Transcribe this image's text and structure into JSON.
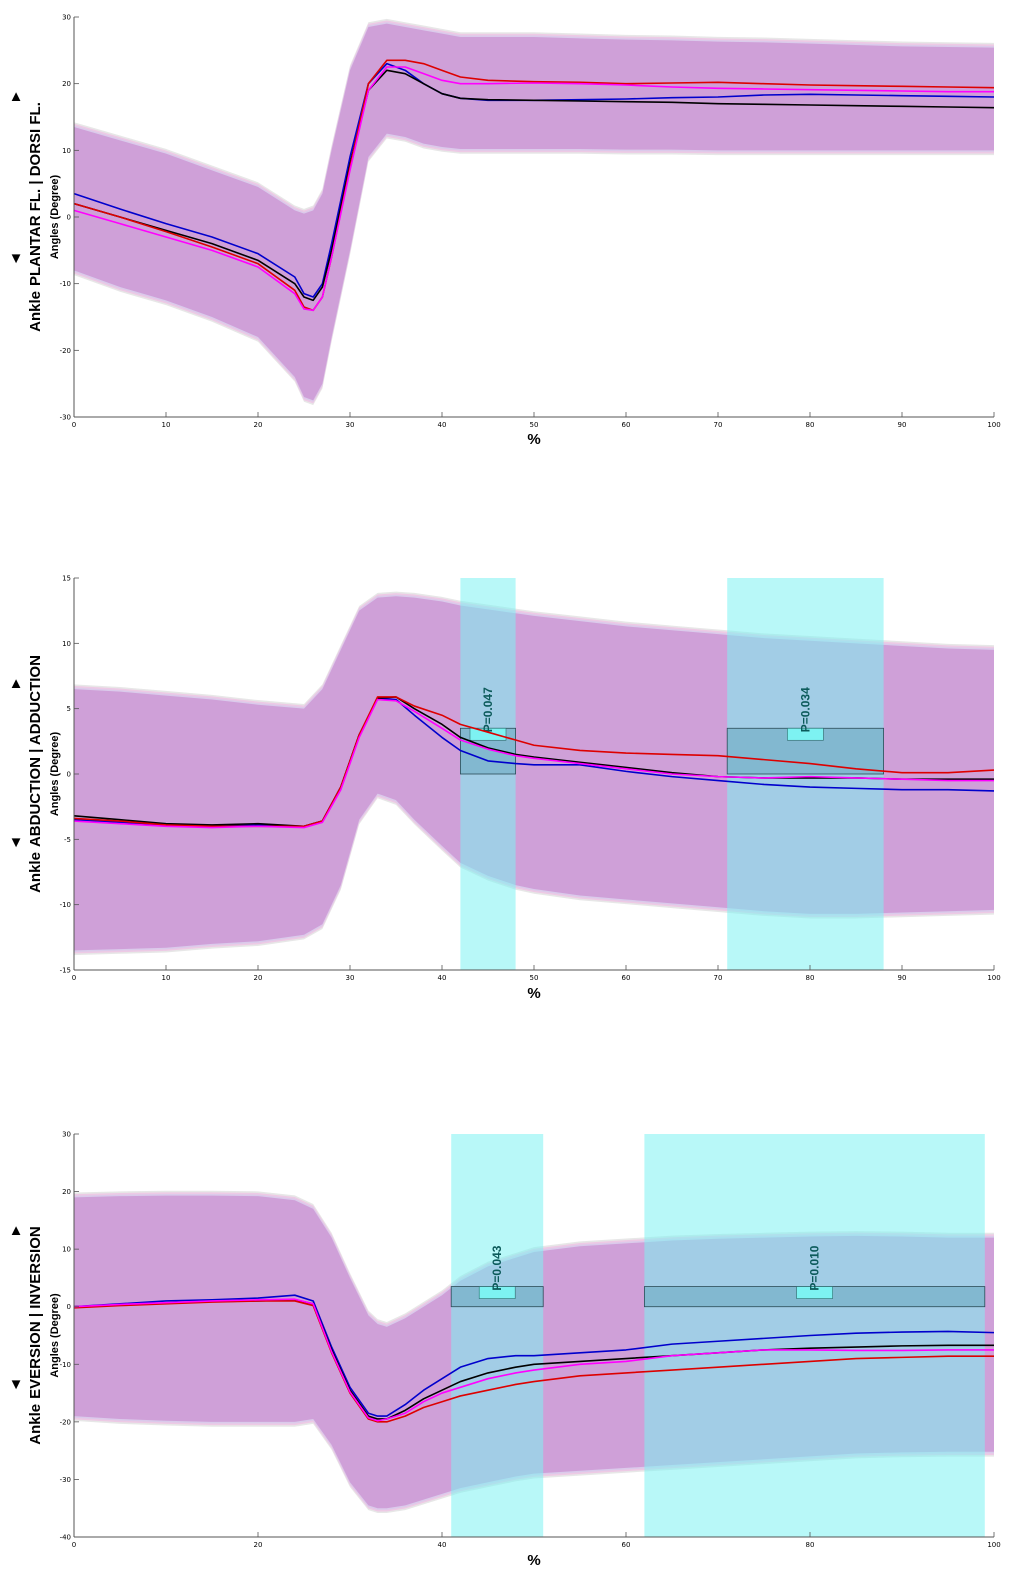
{
  "chart_data": [
    {
      "type": "line",
      "side_label": {
        "joint": "Ankle",
        "direction": "PLANTAR FL. | DORSI FL.",
        "unit": "Angles (Degree)"
      },
      "xlabel": "%",
      "xlim": [
        0,
        100
      ],
      "ylim": [
        -30,
        30
      ],
      "xticks": [
        0,
        10,
        20,
        30,
        40,
        50,
        60,
        70,
        80,
        90,
        100
      ],
      "yticks": [
        -30,
        -20,
        -10,
        0,
        10,
        20,
        30
      ],
      "x": [
        0,
        5,
        10,
        15,
        20,
        24,
        25,
        26,
        27,
        28,
        30,
        32,
        34,
        36,
        38,
        40,
        42,
        45,
        50,
        55,
        60,
        65,
        70,
        75,
        80,
        85,
        90,
        95,
        100
      ],
      "series": [
        {
          "color": "#0000cc",
          "values": [
            3.5,
            1.2,
            -1.0,
            -3.0,
            -5.5,
            -9.0,
            -11.5,
            -12.0,
            -10.0,
            -4.0,
            9.0,
            20.0,
            23.0,
            22.0,
            20.0,
            18.5,
            17.8,
            17.5,
            17.5,
            17.6,
            17.7,
            17.9,
            18.0,
            18.3,
            18.4,
            18.3,
            18.2,
            18.1,
            18.0
          ]
        },
        {
          "color": "#000000",
          "values": [
            2.0,
            0.0,
            -2.0,
            -4.0,
            -6.5,
            -10.0,
            -12.0,
            -12.5,
            -10.5,
            -5.0,
            8.0,
            19.0,
            22.0,
            21.5,
            20.0,
            18.5,
            17.8,
            17.6,
            17.5,
            17.4,
            17.3,
            17.2,
            17.0,
            16.9,
            16.8,
            16.7,
            16.6,
            16.5,
            16.4
          ]
        },
        {
          "color": "#dd0000",
          "values": [
            2.0,
            0.0,
            -2.2,
            -4.5,
            -7.0,
            -11.0,
            -13.5,
            -14.0,
            -12.0,
            -6.0,
            7.5,
            20.0,
            23.5,
            23.5,
            23.0,
            22.0,
            21.0,
            20.5,
            20.3,
            20.2,
            20.0,
            20.1,
            20.2,
            20.0,
            19.8,
            19.7,
            19.6,
            19.5,
            19.4
          ]
        },
        {
          "color": "#ff00ff",
          "values": [
            1.0,
            -1.0,
            -3.0,
            -5.0,
            -7.5,
            -11.5,
            -13.8,
            -14.0,
            -12.0,
            -6.0,
            7.0,
            19.0,
            22.5,
            22.5,
            21.5,
            20.5,
            20.0,
            20.0,
            20.1,
            20.0,
            19.8,
            19.5,
            19.3,
            19.2,
            19.1,
            19.0,
            18.9,
            18.8,
            18.8
          ]
        }
      ],
      "sd_band": {
        "upper": [
          13.5,
          11.5,
          9.5,
          7.0,
          4.5,
          1.0,
          0.5,
          1.0,
          3.5,
          10.0,
          22.0,
          28.5,
          29.0,
          28.5,
          28.0,
          27.5,
          27.0,
          27.0,
          27.0,
          26.8,
          26.6,
          26.5,
          26.3,
          26.2,
          26.0,
          25.8,
          25.6,
          25.5,
          25.4
        ],
        "lower": [
          -8.0,
          -10.5,
          -12.5,
          -15.0,
          -18.0,
          -24.0,
          -27.0,
          -27.5,
          -25.0,
          -18.0,
          -5.0,
          9.0,
          12.5,
          12.0,
          11.0,
          10.5,
          10.2,
          10.2,
          10.2,
          10.2,
          10.1,
          10.1,
          10.0,
          10.0,
          10.0,
          10.0,
          10.0,
          10.0,
          10.0
        ]
      },
      "significance": []
    },
    {
      "type": "line",
      "side_label": {
        "joint": "Ankle",
        "direction": "ABDUCTION | ADDUCTION",
        "unit": "Angles (Degree)"
      },
      "xlabel": "%",
      "xlim": [
        0,
        100
      ],
      "ylim": [
        -15,
        15
      ],
      "xticks": [
        0,
        10,
        20,
        30,
        40,
        50,
        60,
        70,
        80,
        90,
        100
      ],
      "yticks": [
        -15,
        -10,
        -5,
        0,
        5,
        10,
        15
      ],
      "x": [
        0,
        5,
        10,
        15,
        20,
        25,
        27,
        29,
        31,
        33,
        35,
        37,
        40,
        42,
        45,
        48,
        50,
        55,
        60,
        65,
        70,
        75,
        80,
        85,
        90,
        95,
        100
      ],
      "series": [
        {
          "color": "#0000cc",
          "values": [
            -3.5,
            -3.7,
            -3.9,
            -4.0,
            -3.9,
            -4.0,
            -3.6,
            -1.0,
            3.0,
            5.8,
            5.7,
            4.5,
            2.8,
            1.8,
            1.0,
            0.8,
            0.7,
            0.7,
            0.2,
            -0.2,
            -0.5,
            -0.8,
            -1.0,
            -1.1,
            -1.2,
            -1.2,
            -1.3
          ]
        },
        {
          "color": "#000000",
          "values": [
            -3.2,
            -3.5,
            -3.8,
            -3.9,
            -3.8,
            -4.0,
            -3.6,
            -1.0,
            3.0,
            5.8,
            5.9,
            5.0,
            3.8,
            2.8,
            2.0,
            1.5,
            1.3,
            0.9,
            0.5,
            0.1,
            -0.2,
            -0.3,
            -0.3,
            -0.3,
            -0.4,
            -0.4,
            -0.4
          ]
        },
        {
          "color": "#dd0000",
          "values": [
            -3.4,
            -3.6,
            -3.9,
            -4.0,
            -4.0,
            -4.0,
            -3.6,
            -1.0,
            3.0,
            5.9,
            5.9,
            5.2,
            4.5,
            3.8,
            3.2,
            2.6,
            2.2,
            1.8,
            1.6,
            1.5,
            1.4,
            1.1,
            0.8,
            0.4,
            0.1,
            0.1,
            0.3
          ]
        },
        {
          "color": "#ff00ff",
          "values": [
            -3.6,
            -3.8,
            -4.0,
            -4.1,
            -4.0,
            -4.1,
            -3.7,
            -1.2,
            2.8,
            5.7,
            5.6,
            4.8,
            3.5,
            2.6,
            1.9,
            1.4,
            1.2,
            0.8,
            0.4,
            0.0,
            -0.2,
            -0.3,
            -0.2,
            -0.3,
            -0.4,
            -0.5,
            -0.5
          ]
        }
      ],
      "sd_band": {
        "upper": [
          6.5,
          6.3,
          6.0,
          5.7,
          5.3,
          5.0,
          6.5,
          9.5,
          12.5,
          13.5,
          13.6,
          13.5,
          13.2,
          12.9,
          12.6,
          12.3,
          12.1,
          11.7,
          11.3,
          11.0,
          10.7,
          10.4,
          10.2,
          10.0,
          9.8,
          9.6,
          9.5
        ],
        "lower": [
          -13.5,
          -13.4,
          -13.3,
          -13.0,
          -12.8,
          -12.3,
          -11.5,
          -8.5,
          -3.5,
          -1.5,
          -2.0,
          -3.5,
          -5.5,
          -6.8,
          -7.8,
          -8.5,
          -8.8,
          -9.3,
          -9.6,
          -9.9,
          -10.2,
          -10.5,
          -10.7,
          -10.7,
          -10.6,
          -10.5,
          -10.4
        ]
      },
      "significance": [
        {
          "x_start": 42,
          "x_end": 48,
          "label": "P=0.047",
          "mean_diff": 3.5
        },
        {
          "x_start": 71,
          "x_end": 88,
          "label": "P=0.034",
          "mean_diff": 3.5
        }
      ]
    },
    {
      "type": "line",
      "side_label": {
        "joint": "Ankle",
        "direction": "EVERSION | INVERSION",
        "unit": "Angles (Degree)"
      },
      "xlabel": "%",
      "xlim": [
        0,
        100
      ],
      "ylim": [
        -40,
        30
      ],
      "xticks": [
        0,
        20,
        40,
        60,
        80,
        100
      ],
      "yticks": [
        -40,
        -30,
        -20,
        -10,
        0,
        10,
        20,
        30
      ],
      "x": [
        0,
        5,
        10,
        15,
        20,
        24,
        26,
        28,
        30,
        32,
        33,
        34,
        36,
        38,
        40,
        42,
        45,
        48,
        50,
        55,
        60,
        65,
        70,
        75,
        80,
        85,
        90,
        95,
        100
      ],
      "series": [
        {
          "color": "#0000cc",
          "values": [
            0.0,
            0.5,
            1.0,
            1.2,
            1.5,
            2.0,
            1.0,
            -7.0,
            -14.0,
            -18.5,
            -19.0,
            -19.0,
            -17.0,
            -14.5,
            -12.5,
            -10.5,
            -9.0,
            -8.5,
            -8.5,
            -8.0,
            -7.5,
            -6.5,
            -6.0,
            -5.5,
            -5.0,
            -4.6,
            -4.4,
            -4.3,
            -4.5
          ]
        },
        {
          "color": "#000000",
          "values": [
            0.0,
            0.3,
            0.6,
            0.9,
            1.0,
            1.2,
            0.5,
            -7.5,
            -14.5,
            -19.0,
            -19.5,
            -19.5,
            -18.0,
            -16.0,
            -14.5,
            -13.0,
            -11.5,
            -10.5,
            -10.0,
            -9.5,
            -9.0,
            -8.5,
            -8.0,
            -7.5,
            -7.2,
            -7.0,
            -6.8,
            -6.7,
            -6.7
          ]
        },
        {
          "color": "#dd0000",
          "values": [
            -0.2,
            0.2,
            0.5,
            0.8,
            1.0,
            1.0,
            0.2,
            -8.0,
            -15.0,
            -19.5,
            -20.0,
            -20.0,
            -19.0,
            -17.5,
            -16.5,
            -15.5,
            -14.5,
            -13.5,
            -13.0,
            -12.0,
            -11.5,
            -11.0,
            -10.5,
            -10.0,
            -9.5,
            -9.0,
            -8.8,
            -8.6,
            -8.6
          ]
        },
        {
          "color": "#ff00ff",
          "values": [
            0.0,
            0.4,
            0.7,
            1.0,
            1.2,
            1.3,
            0.5,
            -7.8,
            -14.8,
            -19.3,
            -19.8,
            -19.5,
            -18.5,
            -16.5,
            -15.0,
            -14.0,
            -12.5,
            -11.5,
            -11.0,
            -10.0,
            -9.5,
            -8.5,
            -8.0,
            -7.5,
            -7.5,
            -7.6,
            -7.6,
            -7.5,
            -7.5
          ]
        }
      ],
      "sd_band": {
        "upper": [
          19.0,
          19.2,
          19.3,
          19.3,
          19.2,
          18.5,
          17.0,
          12.0,
          5.0,
          -1.5,
          -3.0,
          -3.5,
          -2.0,
          0.0,
          2.0,
          4.5,
          7.0,
          8.5,
          9.5,
          10.5,
          11.0,
          11.5,
          11.8,
          12.0,
          12.2,
          12.3,
          12.2,
          12.0,
          12.0
        ],
        "lower": [
          -19.0,
          -19.5,
          -19.8,
          -20.0,
          -20.0,
          -20.0,
          -19.5,
          -24.0,
          -30.5,
          -34.5,
          -35.0,
          -35.0,
          -34.5,
          -33.5,
          -32.5,
          -31.5,
          -30.5,
          -29.5,
          -29.0,
          -28.5,
          -28.0,
          -27.5,
          -27.0,
          -26.5,
          -26.0,
          -25.5,
          -25.3,
          -25.2,
          -25.2
        ]
      },
      "significance": [
        {
          "x_start": 41,
          "x_end": 51,
          "label": "P=0.043",
          "mean_diff": 3.5
        },
        {
          "x_start": 62,
          "x_end": 99,
          "label": "P=0.010",
          "mean_diff": 3.5
        }
      ]
    }
  ],
  "style": {
    "band_color": "#c57ec9",
    "band_light": "#f2b8e4",
    "band_blue": "#c9c9f2",
    "band_gray": "#d4d4d4",
    "sig_color": "#7df2f2",
    "sig_rect": "#5a9fb5",
    "pval_box": "#7df2f2",
    "tri_up": "▲",
    "tri_down": "▼"
  }
}
